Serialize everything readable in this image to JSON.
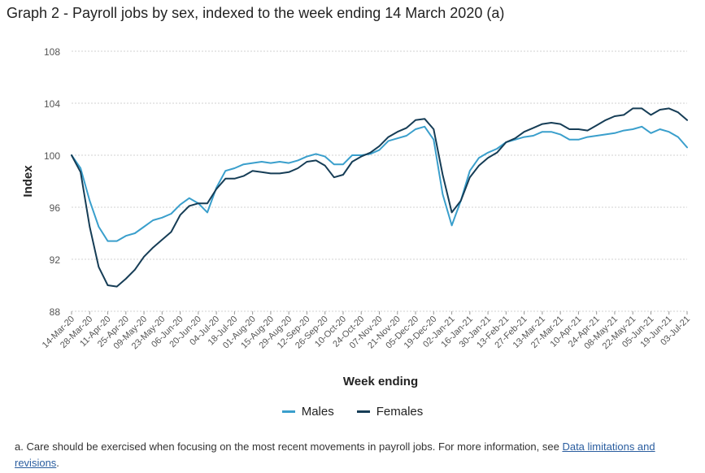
{
  "title": "Graph 2 - Payroll jobs by sex, indexed to the week ending 14 March 2020 (a)",
  "footnote": {
    "prefix": "a. Care should be exercised when focusing on the most recent movements in payroll jobs. For more information, see ",
    "link_text": "Data limitations and revisions",
    "suffix": "."
  },
  "colors": {
    "males": "#3a9fcc",
    "females": "#163d56",
    "grid": "#d0d0d0"
  },
  "chart_data": {
    "type": "line",
    "xlabel": "Week ending",
    "ylabel": "Index",
    "ylim": [
      88,
      108
    ],
    "yticks": [
      88,
      92,
      96,
      100,
      104,
      108
    ],
    "x_labels": [
      "14-Mar-20",
      "28-Mar-20",
      "11-Apr-20",
      "25-Apr-20",
      "09-May-20",
      "23-May-20",
      "06-Jun-20",
      "20-Jun-20",
      "04-Jul-20",
      "18-Jul-20",
      "01-Aug-20",
      "15-Aug-20",
      "29-Aug-20",
      "12-Sep-20",
      "26-Sep-20",
      "10-Oct-20",
      "24-Oct-20",
      "07-Nov-20",
      "21-Nov-20",
      "05-Dec-20",
      "19-Dec-20",
      "02-Jan-21",
      "16-Jan-21",
      "30-Jan-21",
      "13-Feb-21",
      "27-Feb-21",
      "13-Mar-21",
      "27-Mar-21",
      "10-Apr-21",
      "24-Apr-21",
      "08-May-21",
      "22-May-21",
      "05-Jun-21",
      "19-Jun-21",
      "03-Jul-21"
    ],
    "series": [
      {
        "name": "Males",
        "values": [
          100,
          99.0,
          96.5,
          94.5,
          93.4,
          93.4,
          93.8,
          94.0,
          94.5,
          95.0,
          95.2,
          95.5,
          96.2,
          96.7,
          96.3,
          95.6,
          97.5,
          98.8,
          99.0,
          99.3,
          99.4,
          99.5,
          99.4,
          99.5,
          99.4,
          99.6,
          99.9,
          100.1,
          99.9,
          99.3,
          99.3,
          100.0,
          100.0,
          100.1,
          100.4,
          101.1,
          101.3,
          101.5,
          102.0,
          102.2,
          101.2,
          97.0,
          94.6,
          96.5,
          98.8,
          99.8,
          100.2,
          100.5,
          101.0,
          101.2,
          101.4,
          101.5,
          101.8,
          101.8,
          101.6,
          101.2,
          101.2,
          101.4,
          101.5,
          101.6,
          101.7,
          101.9,
          102.0,
          102.2,
          101.7,
          102.0,
          101.8,
          101.4,
          100.6
        ]
      },
      {
        "name": "Females",
        "values": [
          100,
          98.7,
          94.5,
          91.4,
          90.0,
          89.9,
          90.5,
          91.2,
          92.2,
          92.9,
          93.5,
          94.1,
          95.4,
          96.1,
          96.3,
          96.3,
          97.4,
          98.2,
          98.2,
          98.4,
          98.8,
          98.7,
          98.6,
          98.6,
          98.7,
          99.0,
          99.5,
          99.6,
          99.2,
          98.3,
          98.5,
          99.5,
          99.9,
          100.2,
          100.7,
          101.4,
          101.8,
          102.1,
          102.7,
          102.8,
          102.0,
          98.5,
          95.6,
          96.5,
          98.3,
          99.2,
          99.8,
          100.2,
          101.0,
          101.3,
          101.8,
          102.1,
          102.4,
          102.5,
          102.4,
          102.0,
          102.0,
          101.9,
          102.3,
          102.7,
          103.0,
          103.1,
          103.6,
          103.6,
          103.1,
          103.5,
          103.6,
          103.3,
          102.7
        ]
      }
    ],
    "legend_position": "bottom-center",
    "grid": true
  }
}
